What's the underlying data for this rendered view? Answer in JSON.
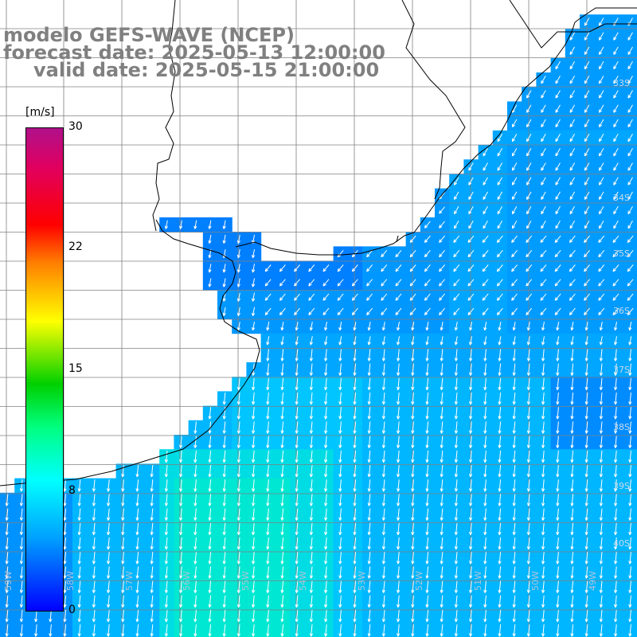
{
  "title": {
    "model": "modelo GEFS-WAVE (NCEP)",
    "forecast": "forecast date: 2025-05-13 12:00:00",
    "valid": "valid date: 2025-05-15 21:00:00"
  },
  "colorbar": {
    "unit": "[m/s]",
    "ticks": [
      "30",
      "22",
      "15",
      "8",
      "0"
    ]
  },
  "map_labels": {
    "longitudes": [
      "59W",
      "58W",
      "57W",
      "56W",
      "55W",
      "54W",
      "53W",
      "52W",
      "51W",
      "50W",
      "49W"
    ],
    "latitudes": [
      "33S",
      "34S",
      "35S",
      "36S",
      "37S",
      "38S",
      "39S",
      "40S"
    ]
  },
  "colors": {
    "land": "#ffffff",
    "coastline": "#000000",
    "gridline": "#808080",
    "arrow": "#ffffff",
    "title_text": "#808080"
  }
}
